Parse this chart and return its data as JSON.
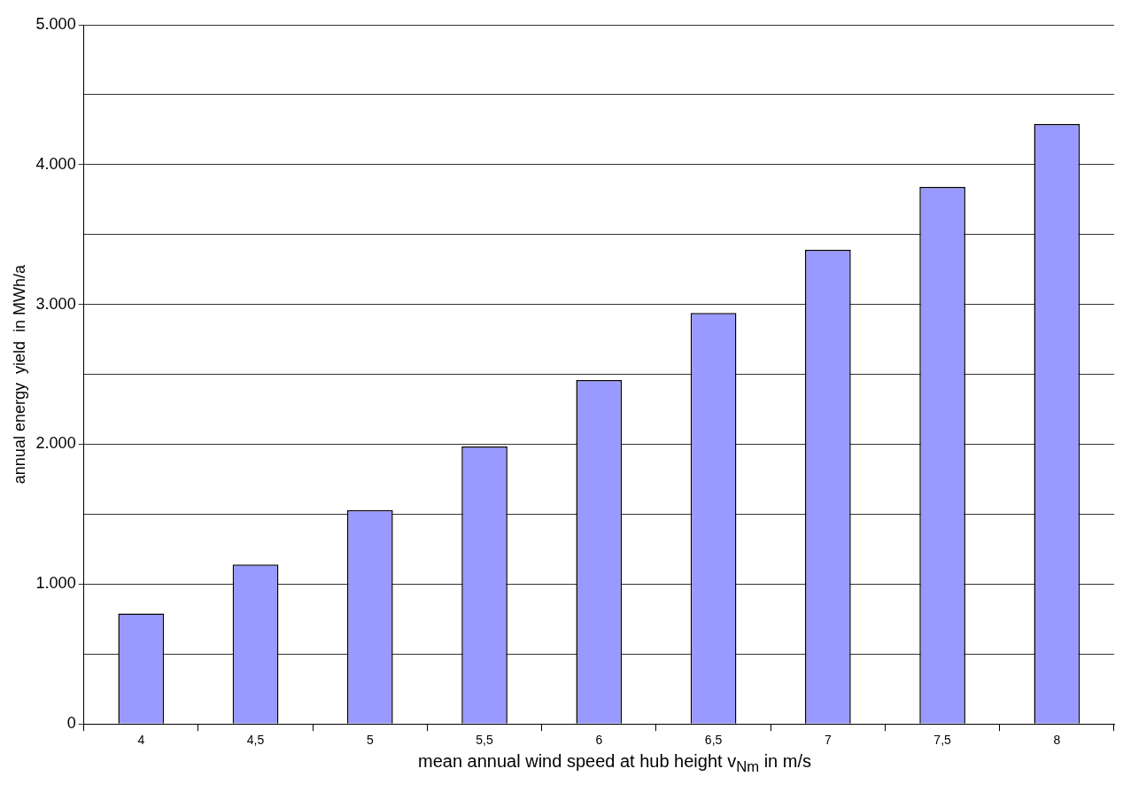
{
  "chart_data": {
    "type": "bar",
    "xlabel": "mean annual wind speed at hub height v$_{Nm}$ in m/s",
    "ylabel": "annual energy  yield  in MWh/a",
    "categories": [
      "4",
      "4,5",
      "5",
      "5,5",
      "6",
      "6,5",
      "7",
      "7,5",
      "8"
    ],
    "values": [
      790,
      1140,
      1530,
      1985,
      2460,
      2940,
      3390,
      3840,
      4290
    ],
    "color": "#9999ff",
    "ylim": [
      0,
      5000
    ],
    "yticks": [
      {
        "value": 0,
        "label": "0"
      },
      {
        "value": 500,
        "label": null
      },
      {
        "value": 1000,
        "label": "1.000"
      },
      {
        "value": 1500,
        "label": null
      },
      {
        "value": 2000,
        "label": "2.000"
      },
      {
        "value": 2500,
        "label": null
      },
      {
        "value": 3000,
        "label": "3.000"
      },
      {
        "value": 3500,
        "label": null
      },
      {
        "value": 4000,
        "label": "4.000"
      },
      {
        "value": 4500,
        "label": null
      },
      {
        "value": 5000,
        "label": "5.000"
      }
    ],
    "grid": "y"
  }
}
